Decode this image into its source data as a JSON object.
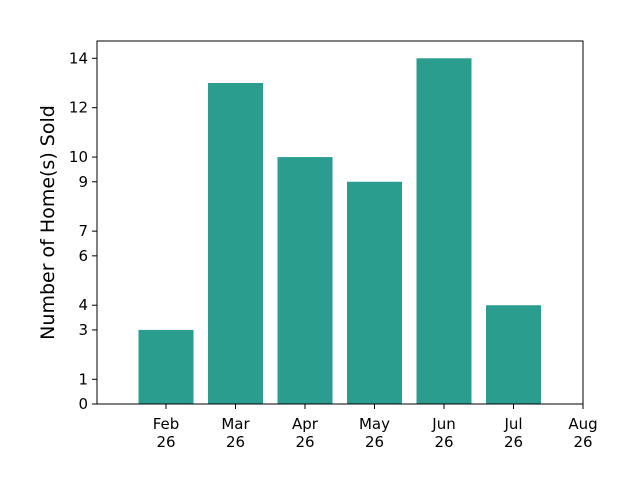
{
  "chart_data": {
    "type": "bar",
    "categories": [
      "Feb 26",
      "Mar 26",
      "Apr 26",
      "May 26",
      "Jun 26",
      "Jul 26"
    ],
    "values": [
      3,
      13,
      10,
      9,
      14,
      4
    ],
    "x_tick_labels": [
      [
        "Feb",
        "26"
      ],
      [
        "Mar",
        "26"
      ],
      [
        "Apr",
        "26"
      ],
      [
        "May",
        "26"
      ],
      [
        "Jun",
        "26"
      ],
      [
        "Jul",
        "26"
      ],
      [
        "Aug",
        "26"
      ]
    ],
    "y_ticks": [
      0,
      1,
      3,
      4,
      6,
      7,
      9,
      10,
      12,
      14
    ],
    "ylim": [
      0,
      14.7
    ],
    "xlabel": "",
    "ylabel": "Number of Home(s) Sold",
    "bar_color": "#2a9d8f",
    "grid": false,
    "legend": "none"
  }
}
